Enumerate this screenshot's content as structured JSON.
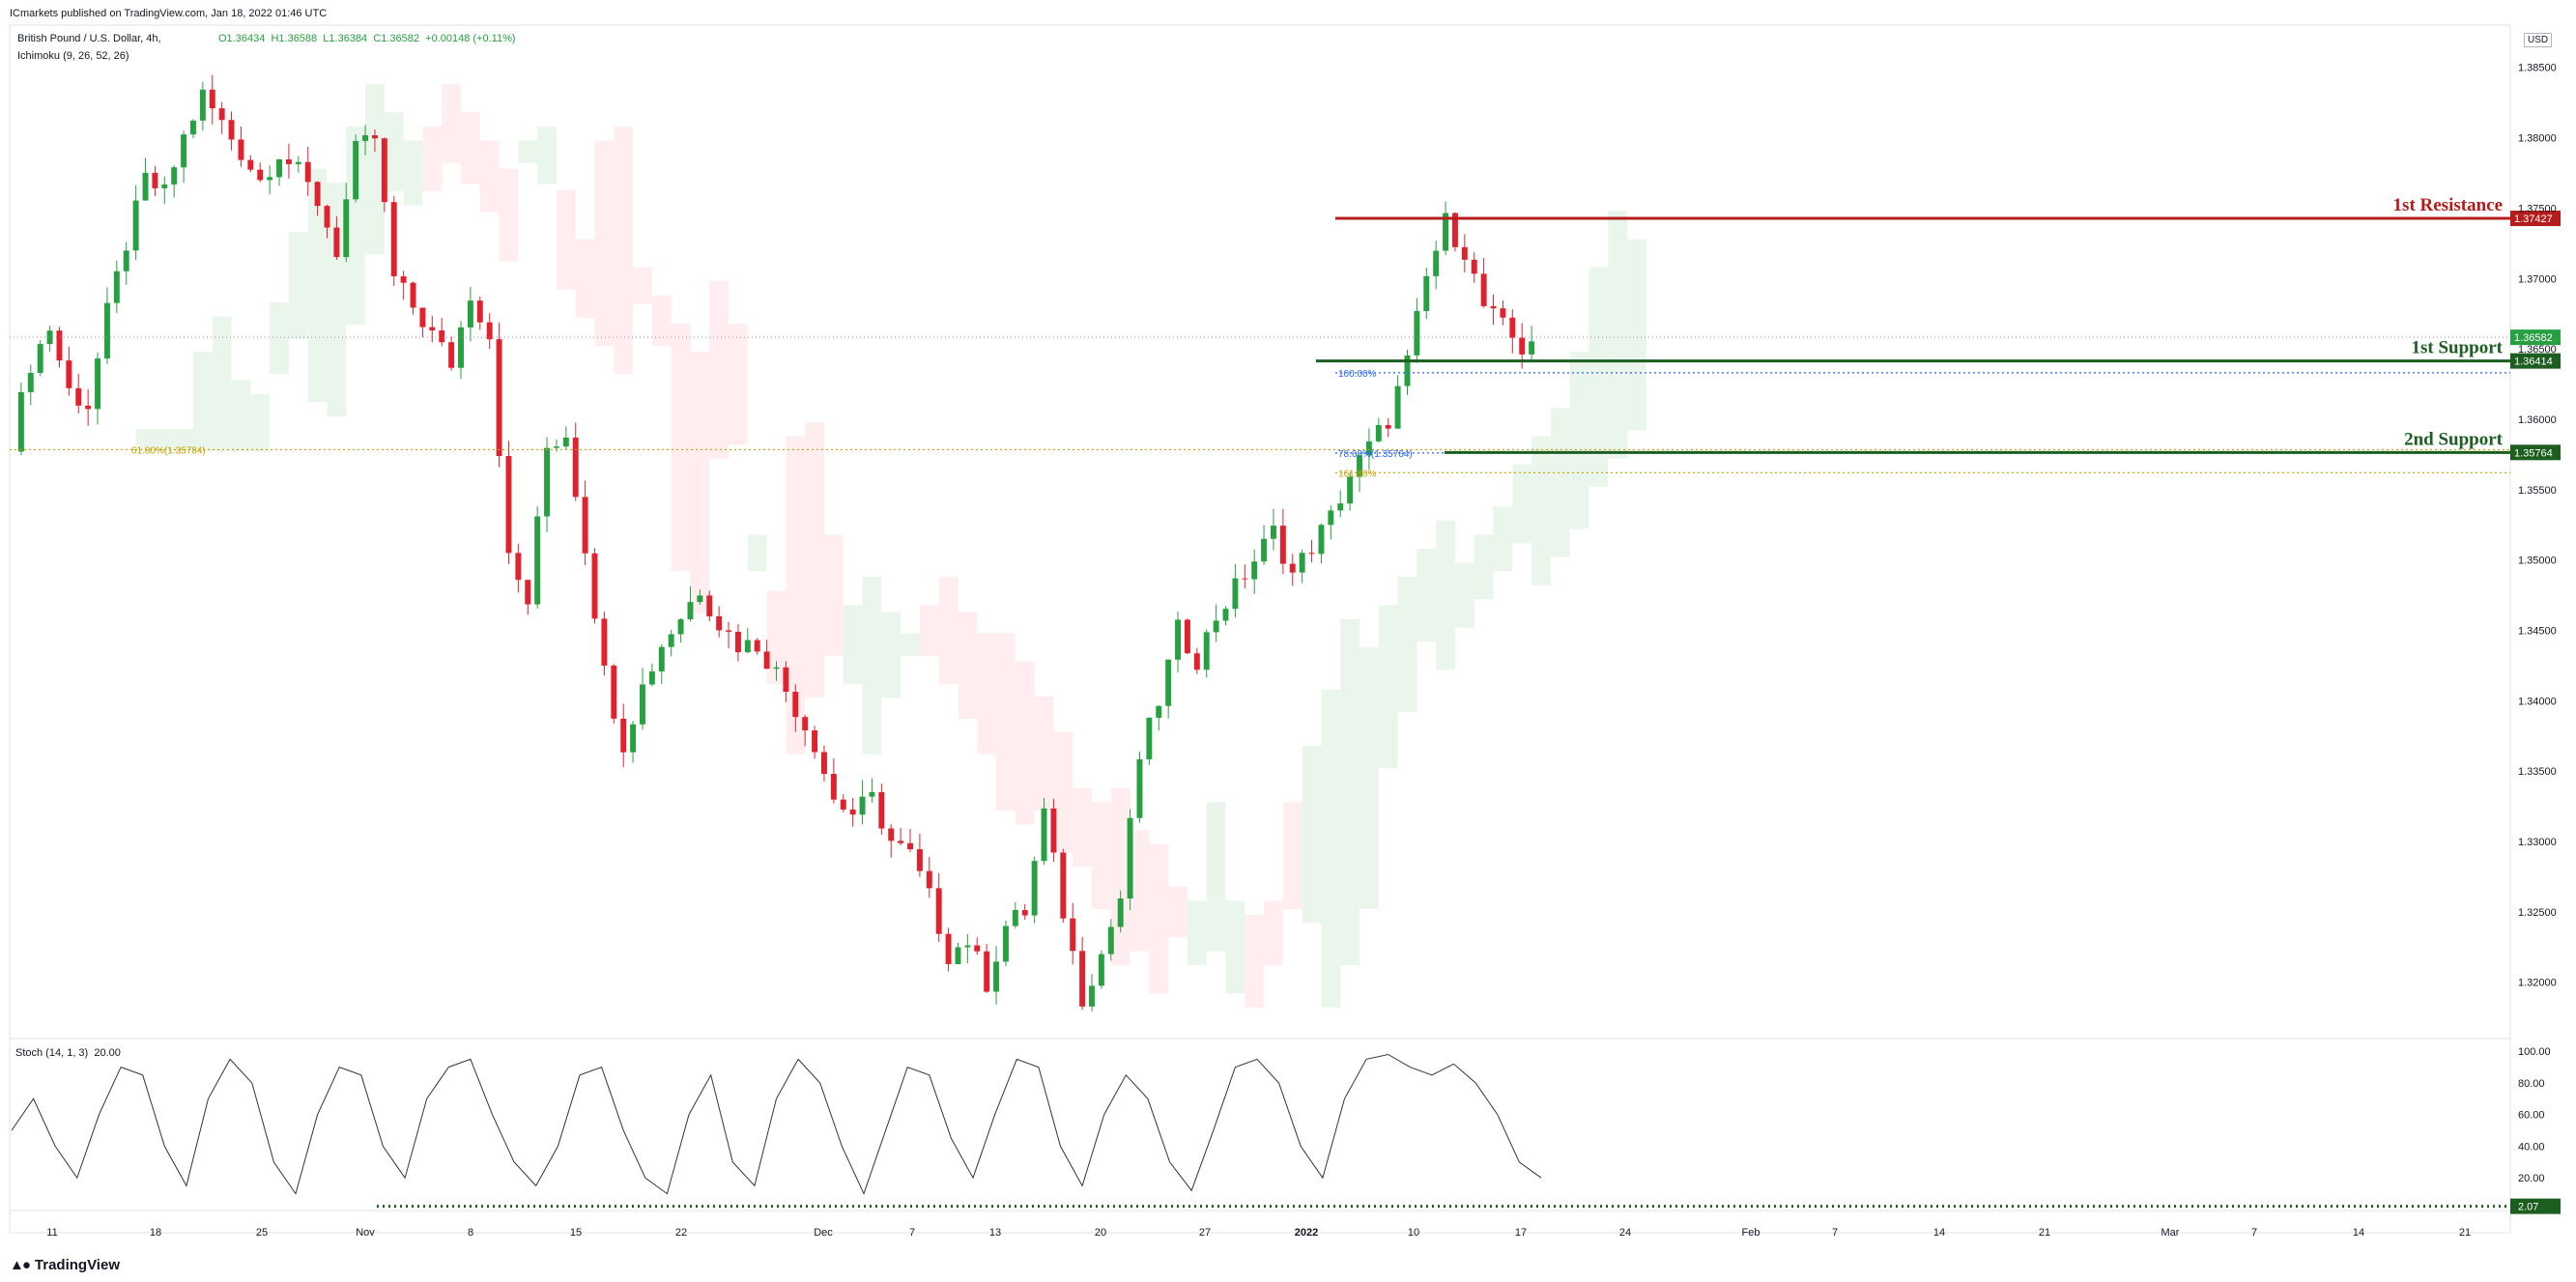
{
  "publisher_line": "ICmarkets published on TradingView.com, Jan 18, 2022 01:46 UTC",
  "symbol_title": "British Pound / U.S. Dollar, 4h,",
  "indicator_label": "Ichimoku (9, 26, 52, 26)",
  "ohlc": {
    "o": "O1.36434",
    "h": "H1.36588",
    "l": "L1.36384",
    "c": "C1.36582",
    "chg": "+0.00148 (+0.11%)"
  },
  "currency": "USD",
  "stoch_label": "Stoch (14, 1, 3)",
  "stoch_value": "20.00",
  "brand": "TradingView",
  "colors": {
    "up": "#26a041",
    "down": "#e0222f",
    "resistance": "#b71c1c",
    "support": "#1b5e20",
    "fib": "#c8a000",
    "fib_blue": "#2962ff",
    "cloud_green": "#e8f5e9",
    "cloud_red": "#ffebee"
  },
  "chart_data": [
    {
      "type": "candlestick",
      "title": "British Pound / U.S. Dollar, 4h",
      "yticks": [
        "1.38500",
        "1.38000",
        "1.37500",
        "1.37000",
        "1.36500",
        "1.36000",
        "1.35500",
        "1.35000",
        "1.34500",
        "1.34000",
        "1.33500",
        "1.33000",
        "1.32500",
        "1.32000"
      ],
      "ylim": [
        1.316,
        1.388
      ],
      "xticks": [
        "11",
        "18",
        "25",
        "Nov",
        "8",
        "15",
        "22",
        "Dec",
        "7",
        "13",
        "20",
        "27",
        "2022",
        "10",
        "17",
        "24",
        "Feb",
        "7",
        "14",
        "21",
        "Mar",
        "7",
        "14",
        "21"
      ],
      "price_path": [
        [
          0,
          1.3585
        ],
        [
          2,
          1.364
        ],
        [
          4,
          1.3665
        ],
        [
          6,
          1.362
        ],
        [
          8,
          1.361
        ],
        [
          10,
          1.3675
        ],
        [
          12,
          1.3725
        ],
        [
          14,
          1.377
        ],
        [
          16,
          1.376
        ],
        [
          18,
          1.38
        ],
        [
          20,
          1.383
        ],
        [
          22,
          1.381
        ],
        [
          24,
          1.379
        ],
        [
          26,
          1.377
        ],
        [
          28,
          1.379
        ],
        [
          30,
          1.3775
        ],
        [
          32,
          1.3755
        ],
        [
          34,
          1.372
        ],
        [
          36,
          1.379
        ],
        [
          38,
          1.38
        ],
        [
          40,
          1.37
        ],
        [
          42,
          1.368
        ],
        [
          44,
          1.366
        ],
        [
          46,
          1.364
        ],
        [
          48,
          1.369
        ],
        [
          50,
          1.366
        ],
        [
          52,
          1.35
        ],
        [
          54,
          1.347
        ],
        [
          56,
          1.358
        ],
        [
          58,
          1.359
        ],
        [
          60,
          1.351
        ],
        [
          62,
          1.342
        ],
        [
          64,
          1.337
        ],
        [
          66,
          1.341
        ],
        [
          68,
          1.344
        ],
        [
          70,
          1.346
        ],
        [
          72,
          1.348
        ],
        [
          74,
          1.3455
        ],
        [
          76,
          1.344
        ],
        [
          78,
          1.344
        ],
        [
          80,
          1.342
        ],
        [
          82,
          1.3395
        ],
        [
          84,
          1.337
        ],
        [
          86,
          1.333
        ],
        [
          88,
          1.332
        ],
        [
          90,
          1.333
        ],
        [
          92,
          1.33
        ],
        [
          94,
          1.329
        ],
        [
          96,
          1.326
        ],
        [
          98,
          1.322
        ],
        [
          100,
          1.323
        ],
        [
          102,
          1.32
        ],
        [
          104,
          1.324
        ],
        [
          106,
          1.325
        ],
        [
          108,
          1.332
        ],
        [
          110,
          1.325
        ],
        [
          112,
          1.319
        ],
        [
          114,
          1.322
        ],
        [
          116,
          1.326
        ],
        [
          118,
          1.336
        ],
        [
          120,
          1.34
        ],
        [
          122,
          1.345
        ],
        [
          124,
          1.343
        ],
        [
          126,
          1.346
        ],
        [
          128,
          1.348
        ],
        [
          130,
          1.35
        ],
        [
          132,
          1.352
        ],
        [
          134,
          1.349
        ],
        [
          136,
          1.351
        ],
        [
          138,
          1.353
        ],
        [
          140,
          1.356
        ],
        [
          142,
          1.358
        ],
        [
          144,
          1.36
        ],
        [
          146,
          1.364
        ],
        [
          148,
          1.37
        ],
        [
          150,
          1.374
        ],
        [
          152,
          1.372
        ],
        [
          154,
          1.368
        ],
        [
          156,
          1.3665
        ],
        [
          158,
          1.365
        ],
        [
          159,
          1.3658
        ]
      ],
      "ichimoku_cloud_note": "green/red Kumo shading",
      "levels": [
        {
          "label": "1st Resistance",
          "value": "1.37427",
          "color": "#b71c1c"
        },
        {
          "label": "1st Support",
          "value": "1.36414",
          "color": "#1b5e20"
        },
        {
          "label": "2nd Support",
          "value": "1.35764",
          "color": "#1b5e20"
        }
      ],
      "current_price": "1.36582",
      "fibonacci": [
        {
          "label": "61.80%(1.35784)",
          "value": 1.35784
        },
        {
          "label": "100.00%",
          "value": 1.3633
        },
        {
          "label": "78.60%(1.35764)",
          "value": 1.3576
        },
        {
          "label": "161.80%",
          "value": 1.3562
        }
      ]
    },
    {
      "type": "line",
      "title": "Stoch (14, 1, 3)",
      "yticks": [
        "100.00",
        "80.00",
        "60.00",
        "40.00",
        "20.00"
      ],
      "ylim": [
        0,
        105
      ],
      "current_value": "2.07",
      "series": [
        {
          "values": [
            50,
            70,
            40,
            20,
            60,
            90,
            85,
            40,
            15,
            70,
            95,
            80,
            30,
            10,
            60,
            90,
            85,
            40,
            20,
            70,
            90,
            95,
            60,
            30,
            15,
            40,
            85,
            90,
            50,
            20,
            10,
            60,
            85,
            30,
            15,
            70,
            95,
            80,
            40,
            10,
            50,
            90,
            85,
            45,
            20,
            60,
            95,
            90,
            40,
            15,
            60,
            85,
            70,
            30,
            12,
            50,
            90,
            95,
            80,
            40,
            20,
            70,
            95,
            98,
            90,
            85,
            92,
            80,
            60,
            30,
            20
          ]
        }
      ]
    }
  ]
}
